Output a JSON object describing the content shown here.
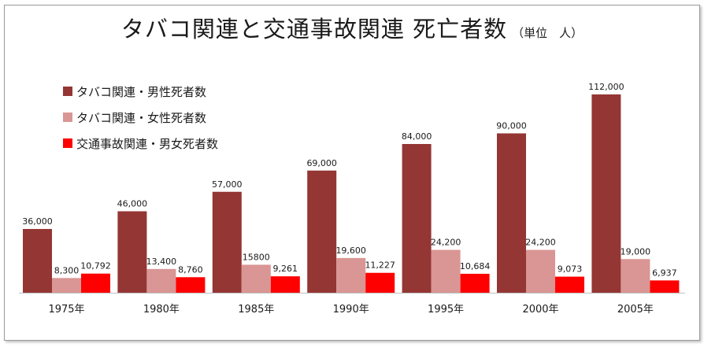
{
  "chart_data": {
    "type": "bar",
    "title": "タバコ関連と交通事故関連 死亡者数",
    "unit_label": "（単位　人）",
    "categories": [
      "1975年",
      "1980年",
      "1985年",
      "1990年",
      "1995年",
      "2000年",
      "2005年"
    ],
    "series": [
      {
        "name": "タバコ関連・男性死者数",
        "color": "#943634",
        "values": [
          36000,
          46000,
          57000,
          69000,
          84000,
          90000,
          112000
        ],
        "labels": [
          "36,000",
          "46,000",
          "57,000",
          "69,000",
          "84,000",
          "90,000",
          "112,000"
        ]
      },
      {
        "name": "タバコ関連・女性死者数",
        "color": "#d99694",
        "values": [
          8300,
          13400,
          15800,
          19600,
          24200,
          24200,
          19000
        ],
        "labels": [
          "8,300",
          "13,400",
          "15800",
          "19,600",
          "24,200",
          "24,200",
          "19,000"
        ]
      },
      {
        "name": "交通事故関連・男女死者数",
        "color": "#ff0000",
        "values": [
          10792,
          8760,
          9261,
          11227,
          10684,
          9073,
          6937
        ],
        "labels": [
          "10,792",
          "8,760",
          "9,261",
          "11,227",
          "10,684",
          "9,073",
          "6,937"
        ]
      }
    ],
    "ylim": [
      0,
      120000
    ],
    "grid": false,
    "legend_position": "top-left"
  }
}
